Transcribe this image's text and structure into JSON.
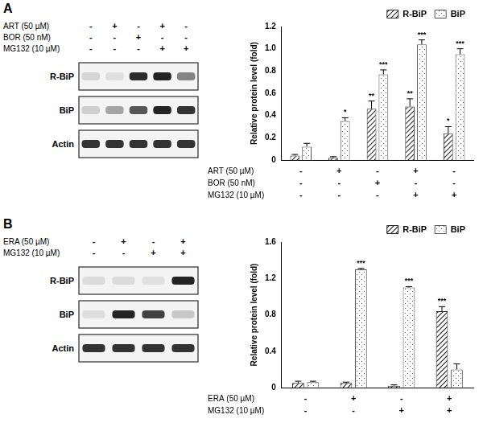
{
  "blots": [
    {
      "label": "A",
      "treatments": [
        {
          "name": "ART (50 µM)",
          "signs": [
            "-",
            "+",
            "-",
            "+",
            "-"
          ]
        },
        {
          "name": "BOR (50 nM)",
          "signs": [
            "-",
            "-",
            "+",
            "-",
            "-"
          ]
        },
        {
          "name": "MG132 (10 µM)",
          "signs": [
            "-",
            "-",
            "-",
            "+",
            "+"
          ]
        }
      ],
      "bands": [
        "R-BiP",
        "BiP",
        "Actin"
      ]
    },
    {
      "label": "B",
      "treatments": [
        {
          "name": "ERA (50 µM)",
          "signs": [
            "-",
            "+",
            "-",
            "+"
          ]
        },
        {
          "name": "MG132 (10 µM)",
          "signs": [
            "-",
            "-",
            "+",
            "+"
          ]
        }
      ],
      "bands": [
        "R-BiP",
        "BiP",
        "Actin"
      ]
    }
  ],
  "chart_data": [
    {
      "type": "bar",
      "ylabel": "Relative protein level (fold)",
      "categories": [
        null,
        null,
        null,
        null,
        null
      ],
      "treatments": [
        {
          "name": "ART (50 µM)",
          "signs": [
            "-",
            "+",
            "-",
            "+",
            "-"
          ]
        },
        {
          "name": "BOR (50 nM)",
          "signs": [
            "-",
            "-",
            "+",
            "-",
            "-"
          ]
        },
        {
          "name": "MG132 (10 µM)",
          "signs": [
            "-",
            "-",
            "-",
            "+",
            "+"
          ]
        }
      ],
      "series": [
        {
          "name": "R-BiP",
          "color": "#333333",
          "values": [
            0.04,
            0.02,
            0.46,
            0.48,
            0.24
          ],
          "errors": [
            0.01,
            0.01,
            0.07,
            0.07,
            0.06
          ],
          "significance": [
            null,
            null,
            "**",
            "**",
            "*"
          ]
        },
        {
          "name": "BiP",
          "color": "#555555",
          "values": [
            0.12,
            0.35,
            0.77,
            1.04,
            0.95
          ],
          "errors": [
            0.03,
            0.03,
            0.04,
            0.04,
            0.05
          ],
          "significance": [
            null,
            "*",
            "***",
            "***",
            "***"
          ]
        }
      ],
      "ylim": [
        0,
        1.2
      ],
      "yticks": [
        0,
        0.2,
        0.4,
        0.6,
        0.8,
        {
          "value": 1,
          "label": "1.0"
        },
        1.2
      ],
      "grid": false,
      "legend": "upper right",
      "tick_labels": "y"
    },
    {
      "type": "bar",
      "ylabel": "Relative protein level (fold)",
      "categories": [
        null,
        null,
        null,
        null
      ],
      "treatments": [
        {
          "name": "ERA (50 µM)",
          "signs": [
            "-",
            "+",
            "-",
            "+"
          ]
        },
        {
          "name": "MG132 (10 µM)",
          "signs": [
            "-",
            "-",
            "+",
            "+"
          ]
        }
      ],
      "series": [
        {
          "name": "R-BiP",
          "color": "#222222",
          "values": [
            0.05,
            0.05,
            0.02,
            0.84
          ],
          "errors": [
            0.02,
            0.01,
            0.01,
            0.05
          ],
          "significance": [
            null,
            null,
            null,
            "***"
          ]
        },
        {
          "name": "BiP",
          "color": "#555555",
          "values": [
            0.06,
            1.3,
            1.1,
            0.2
          ],
          "errors": [
            0.01,
            0.01,
            0.01,
            0.06
          ],
          "significance": [
            null,
            "***",
            "***",
            null
          ]
        }
      ],
      "ylim": [
        0,
        1.6
      ],
      "yticks": [
        0,
        0.4,
        0.8,
        1.2,
        1.6
      ],
      "grid": false,
      "legend": "upper right",
      "tick_labels": "y"
    }
  ]
}
